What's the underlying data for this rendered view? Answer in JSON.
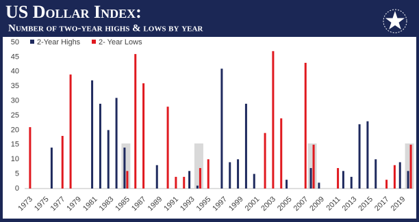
{
  "chart_data": {
    "type": "bar",
    "title": "US Dollar Index:",
    "subtitle": "Number of two-year highs & lows by year",
    "categories": [
      "1973",
      null,
      "1975",
      null,
      "1977",
      null,
      "1979",
      null,
      "1981",
      null,
      "1983",
      null,
      "1985",
      null,
      "1987",
      null,
      "1989",
      null,
      "1991",
      null,
      "1993",
      null,
      "1995",
      null,
      "1997",
      null,
      "1999",
      null,
      "2001",
      null,
      "2003",
      null,
      "2005",
      null,
      "2007",
      null,
      "2009",
      null,
      "2011",
      null,
      "2013",
      null,
      "2015",
      null,
      "2017",
      null,
      "2019",
      null
    ],
    "series": [
      {
        "name": "2-Year Highs",
        "color": "#1f2a5e",
        "values": [
          0,
          0,
          0,
          14,
          0,
          0,
          0,
          0,
          37,
          29,
          20,
          31,
          14,
          0,
          0,
          0,
          8,
          0,
          0,
          0,
          6,
          1,
          0,
          0,
          41,
          9,
          10,
          29,
          5,
          0,
          0,
          0,
          3,
          0,
          0,
          7,
          2,
          0,
          0,
          6,
          4,
          22,
          23,
          10,
          0,
          0,
          9,
          6
        ]
      },
      {
        "name": "2- Year Lows",
        "color": "#e0191f",
        "values": [
          21,
          0,
          0,
          0,
          18,
          39,
          0,
          0,
          0,
          0,
          0,
          0,
          6,
          46,
          36,
          0,
          0,
          28,
          4,
          4,
          0,
          7,
          10,
          0,
          0,
          0,
          0,
          0,
          0,
          19,
          47,
          24,
          0,
          0,
          43,
          15,
          0,
          0,
          7,
          0,
          0,
          0,
          0,
          0,
          3,
          8,
          0,
          15
        ]
      }
    ],
    "ylim": [
      0,
      50
    ],
    "yticks": [
      0,
      5,
      10,
      15,
      20,
      25,
      30,
      35,
      40,
      45,
      50
    ],
    "grid": false
  }
}
